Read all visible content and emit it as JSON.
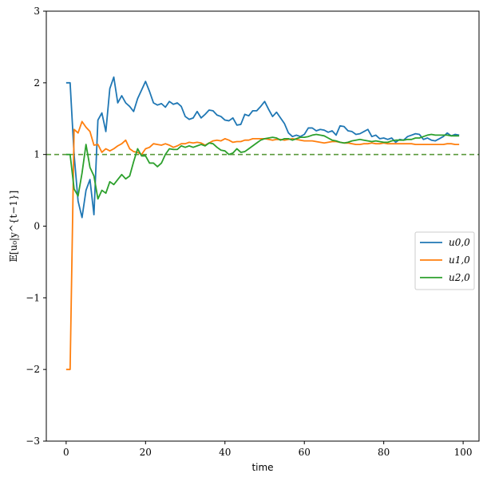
{
  "chart_data": {
    "type": "line",
    "xlabel": "time",
    "ylabel": "𝔼[u₀|y^{t−1}]",
    "xlim": [
      -5,
      104
    ],
    "ylim": [
      -3,
      3
    ],
    "xticks": [
      0,
      20,
      40,
      60,
      80,
      100
    ],
    "yticks": [
      -3,
      -2,
      -1,
      0,
      1,
      2,
      3
    ],
    "xtick_labels": [
      "0",
      "20",
      "40",
      "60",
      "80",
      "100"
    ],
    "ytick_labels": [
      "−3",
      "−2",
      "−1",
      "0",
      "1",
      "2",
      "3"
    ],
    "grid": false,
    "legend_position": "center-right",
    "reference_line": {
      "y": 1,
      "style": "dashed",
      "color": "#5a9a3c"
    },
    "series": [
      {
        "name": "u0,0",
        "color": "#1f77b4",
        "x": [
          0,
          1,
          2,
          3,
          4,
          5,
          6,
          7,
          8,
          9,
          10,
          11,
          12,
          13,
          14,
          15,
          16,
          17,
          18,
          19,
          20,
          21,
          22,
          23,
          24,
          25,
          26,
          27,
          28,
          29,
          30,
          31,
          32,
          33,
          34,
          35,
          36,
          37,
          38,
          39,
          40,
          41,
          42,
          43,
          44,
          45,
          46,
          47,
          48,
          49,
          50,
          51,
          52,
          53,
          54,
          55,
          56,
          57,
          58,
          59,
          60,
          61,
          62,
          63,
          64,
          65,
          66,
          67,
          68,
          69,
          70,
          71,
          72,
          73,
          74,
          75,
          76,
          77,
          78,
          79,
          80,
          81,
          82,
          83,
          84,
          85,
          86,
          87,
          88,
          89,
          90,
          91,
          92,
          93,
          94,
          95,
          96,
          97,
          98,
          99
        ],
        "values": [
          2.0,
          2.0,
          1.0,
          0.35,
          0.12,
          0.5,
          0.65,
          0.16,
          1.48,
          1.58,
          1.32,
          1.92,
          2.08,
          1.72,
          1.82,
          1.72,
          1.67,
          1.6,
          1.78,
          1.9,
          2.02,
          1.88,
          1.72,
          1.69,
          1.71,
          1.66,
          1.74,
          1.7,
          1.72,
          1.67,
          1.53,
          1.49,
          1.51,
          1.6,
          1.51,
          1.56,
          1.62,
          1.61,
          1.55,
          1.53,
          1.48,
          1.47,
          1.51,
          1.41,
          1.42,
          1.56,
          1.54,
          1.61,
          1.61,
          1.67,
          1.74,
          1.63,
          1.53,
          1.59,
          1.51,
          1.43,
          1.3,
          1.25,
          1.27,
          1.25,
          1.28,
          1.37,
          1.37,
          1.33,
          1.35,
          1.34,
          1.31,
          1.33,
          1.27,
          1.4,
          1.39,
          1.33,
          1.32,
          1.28,
          1.29,
          1.32,
          1.35,
          1.25,
          1.27,
          1.22,
          1.23,
          1.21,
          1.23,
          1.17,
          1.21,
          1.2,
          1.25,
          1.27,
          1.29,
          1.28,
          1.21,
          1.23,
          1.2,
          1.19,
          1.22,
          1.25,
          1.3,
          1.26,
          1.28,
          1.27
        ]
      },
      {
        "name": "u1,0",
        "color": "#ff7f0e",
        "x": [
          0,
          1,
          2,
          3,
          4,
          5,
          6,
          7,
          8,
          9,
          10,
          11,
          12,
          13,
          14,
          15,
          16,
          17,
          18,
          19,
          20,
          21,
          22,
          23,
          24,
          25,
          26,
          27,
          28,
          29,
          30,
          31,
          32,
          33,
          34,
          35,
          36,
          37,
          38,
          39,
          40,
          41,
          42,
          43,
          44,
          45,
          46,
          47,
          48,
          49,
          50,
          51,
          52,
          53,
          54,
          55,
          56,
          57,
          58,
          59,
          60,
          61,
          62,
          63,
          64,
          65,
          66,
          67,
          68,
          69,
          70,
          71,
          72,
          73,
          74,
          75,
          76,
          77,
          78,
          79,
          80,
          81,
          82,
          83,
          84,
          85,
          86,
          87,
          88,
          89,
          90,
          91,
          92,
          93,
          94,
          95,
          96,
          97,
          98,
          99
        ],
        "values": [
          -2.0,
          -2.0,
          1.35,
          1.3,
          1.46,
          1.38,
          1.32,
          1.13,
          1.14,
          1.03,
          1.08,
          1.05,
          1.08,
          1.12,
          1.15,
          1.2,
          1.08,
          1.04,
          1.03,
          1.0,
          1.08,
          1.1,
          1.15,
          1.14,
          1.13,
          1.15,
          1.13,
          1.1,
          1.12,
          1.15,
          1.15,
          1.17,
          1.16,
          1.17,
          1.16,
          1.13,
          1.16,
          1.19,
          1.2,
          1.19,
          1.22,
          1.2,
          1.17,
          1.18,
          1.18,
          1.2,
          1.2,
          1.22,
          1.22,
          1.22,
          1.22,
          1.21,
          1.2,
          1.21,
          1.21,
          1.2,
          1.21,
          1.22,
          1.21,
          1.2,
          1.19,
          1.19,
          1.19,
          1.18,
          1.17,
          1.16,
          1.17,
          1.18,
          1.18,
          1.17,
          1.16,
          1.16,
          1.15,
          1.14,
          1.14,
          1.15,
          1.15,
          1.16,
          1.15,
          1.15,
          1.16,
          1.15,
          1.15,
          1.15,
          1.15,
          1.15,
          1.15,
          1.15,
          1.14,
          1.14,
          1.14,
          1.14,
          1.14,
          1.14,
          1.14,
          1.14,
          1.15,
          1.15,
          1.14,
          1.14
        ]
      },
      {
        "name": "u2,0",
        "color": "#2ca02c",
        "x": [
          0,
          1,
          2,
          3,
          4,
          5,
          6,
          7,
          8,
          9,
          10,
          11,
          12,
          13,
          14,
          15,
          16,
          17,
          18,
          19,
          20,
          21,
          22,
          23,
          24,
          25,
          26,
          27,
          28,
          29,
          30,
          31,
          32,
          33,
          34,
          35,
          36,
          37,
          38,
          39,
          40,
          41,
          42,
          43,
          44,
          45,
          46,
          47,
          48,
          49,
          50,
          51,
          52,
          53,
          54,
          55,
          56,
          57,
          58,
          59,
          60,
          61,
          62,
          63,
          64,
          65,
          66,
          67,
          68,
          69,
          70,
          71,
          72,
          73,
          74,
          75,
          76,
          77,
          78,
          79,
          80,
          81,
          82,
          83,
          84,
          85,
          86,
          87,
          88,
          89,
          90,
          91,
          92,
          93,
          94,
          95,
          96,
          97,
          98,
          99
        ],
        "values": [
          1.0,
          1.0,
          0.52,
          0.42,
          0.74,
          1.14,
          0.82,
          0.7,
          0.38,
          0.5,
          0.46,
          0.62,
          0.58,
          0.65,
          0.72,
          0.66,
          0.7,
          0.9,
          1.08,
          0.98,
          0.98,
          0.88,
          0.88,
          0.83,
          0.88,
          1.0,
          1.08,
          1.07,
          1.07,
          1.12,
          1.1,
          1.12,
          1.1,
          1.12,
          1.14,
          1.12,
          1.16,
          1.15,
          1.1,
          1.06,
          1.05,
          1.0,
          1.02,
          1.08,
          1.03,
          1.04,
          1.08,
          1.12,
          1.16,
          1.2,
          1.22,
          1.23,
          1.24,
          1.23,
          1.2,
          1.22,
          1.22,
          1.2,
          1.22,
          1.24,
          1.24,
          1.25,
          1.27,
          1.28,
          1.27,
          1.26,
          1.23,
          1.2,
          1.19,
          1.17,
          1.16,
          1.17,
          1.19,
          1.2,
          1.21,
          1.2,
          1.19,
          1.18,
          1.19,
          1.18,
          1.17,
          1.17,
          1.19,
          1.2,
          1.2,
          1.2,
          1.21,
          1.21,
          1.23,
          1.23,
          1.25,
          1.27,
          1.28,
          1.27,
          1.27,
          1.27,
          1.27,
          1.26,
          1.26,
          1.26
        ]
      }
    ]
  }
}
